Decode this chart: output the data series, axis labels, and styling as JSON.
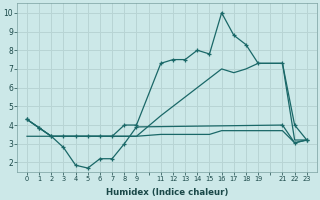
{
  "xlabel": "Humidex (Indice chaleur)",
  "bg_color": "#cce8e8",
  "grid_color": "#b8d4d4",
  "line_color": "#1a6868",
  "x_tick_labels": [
    "0",
    "1",
    "2",
    "3",
    "4",
    "5",
    "6",
    "7",
    "8",
    "9",
    "",
    "11",
    "12",
    "13",
    "14",
    "15",
    "16",
    "17",
    "18",
    "19",
    "",
    "21",
    "22",
    "23"
  ],
  "x_positions": [
    0,
    1,
    2,
    3,
    4,
    5,
    6,
    7,
    8,
    9,
    10,
    11,
    12,
    13,
    14,
    15,
    16,
    17,
    18,
    19,
    20,
    21,
    22,
    23
  ],
  "series1_x": [
    0,
    1,
    2,
    3,
    4,
    5,
    6,
    7,
    8,
    9,
    21,
    22,
    23
  ],
  "series1_y": [
    4.3,
    3.85,
    3.4,
    2.8,
    1.85,
    1.7,
    2.2,
    2.2,
    3.0,
    3.9,
    4.0,
    3.05,
    3.2
  ],
  "series2_x": [
    0,
    1,
    2,
    3,
    4,
    5,
    6,
    7,
    8,
    9,
    11,
    12,
    13,
    14,
    15,
    16,
    17,
    18,
    19,
    21,
    22,
    23
  ],
  "series2_y": [
    3.4,
    3.4,
    3.4,
    3.4,
    3.4,
    3.4,
    3.4,
    3.4,
    3.4,
    3.4,
    3.5,
    3.5,
    3.5,
    3.5,
    3.5,
    3.7,
    3.7,
    3.7,
    3.7,
    3.7,
    3.05,
    3.2
  ],
  "series3_x": [
    0,
    1,
    2,
    3,
    4,
    5,
    6,
    7,
    8,
    9,
    11,
    12,
    13,
    14,
    15,
    16,
    17,
    18,
    19,
    21,
    22,
    23
  ],
  "series3_y": [
    4.3,
    3.85,
    3.4,
    3.4,
    3.4,
    3.4,
    3.4,
    3.4,
    4.0,
    4.0,
    7.3,
    7.5,
    7.5,
    8.0,
    7.8,
    10.0,
    8.8,
    8.3,
    7.3,
    7.3,
    4.0,
    3.2
  ],
  "series4_x": [
    0,
    1,
    2,
    3,
    4,
    5,
    6,
    7,
    8,
    9,
    11,
    12,
    13,
    14,
    15,
    16,
    17,
    18,
    19,
    21,
    22,
    23
  ],
  "series4_y": [
    4.3,
    3.85,
    3.4,
    3.4,
    3.4,
    3.4,
    3.4,
    3.4,
    3.4,
    3.4,
    4.5,
    5.0,
    5.5,
    6.0,
    6.5,
    7.0,
    6.8,
    7.0,
    7.3,
    7.3,
    3.2,
    3.2
  ],
  "ylim": [
    1.5,
    10.5
  ],
  "yticks": [
    2,
    3,
    4,
    5,
    6,
    7,
    8,
    9,
    10
  ],
  "marker_series": [
    1,
    3
  ]
}
